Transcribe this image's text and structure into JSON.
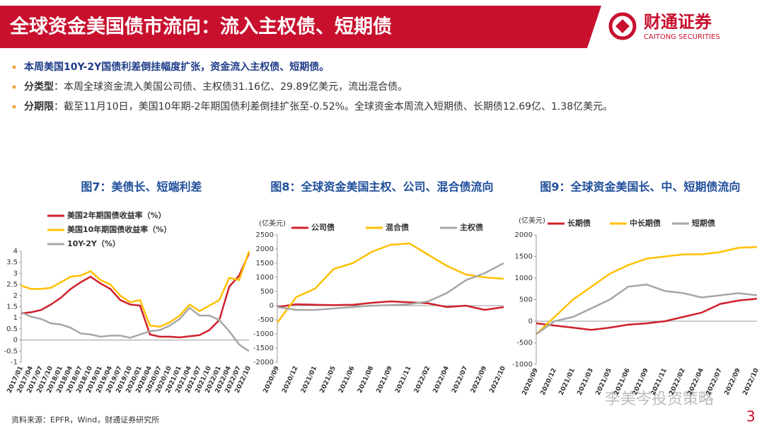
{
  "header": {
    "title": "全球资金美国债市流向：流入主权债、短期债",
    "logo": "财通证券",
    "logo_en": "CAITONG SECURITIES"
  },
  "bullets": [
    {
      "label": "本周美国10Y-2Y国债利差倒挂幅度扩张，资金流入主权债、短期债。"
    },
    {
      "label": "分类型",
      "text": "：本周全球资金流入美国公司债、主权债31.16亿、29.89亿美元，流出混合债。"
    },
    {
      "label": "分期限",
      "text": "：截至11月10日，美国10年期-2年期国债利差倒挂扩张至-0.52%。全球资金本周流入短期债、长期债12.69亿、1.38亿美元。"
    }
  ],
  "chart_data": [
    {
      "type": "line",
      "title": "图7：美债长、短端利差",
      "categories": [
        "2017/01",
        "2017/04",
        "2017/07",
        "2017/10",
        "2018/01",
        "2018/04",
        "2018/07",
        "2018/10",
        "2019/01",
        "2019/04",
        "2019/07",
        "2019/10",
        "2020/01",
        "2020/04",
        "2020/07",
        "2020/10",
        "2021/01",
        "2021/04",
        "2021/07",
        "2021/10",
        "2022/01",
        "2022/04",
        "2022/07",
        "2022/10"
      ],
      "series": [
        {
          "name": "美国2年期国债收益率（%）",
          "color": "#d0202a",
          "values": [
            1.2,
            1.25,
            1.35,
            1.6,
            1.9,
            2.3,
            2.6,
            2.85,
            2.55,
            2.3,
            1.8,
            1.6,
            1.55,
            0.25,
            0.15,
            0.15,
            0.12,
            0.17,
            0.22,
            0.45,
            0.9,
            2.4,
            2.9,
            3.9
          ]
        },
        {
          "name": "美国10年期国债收益率（%）",
          "color": "#ffc000",
          "values": [
            2.45,
            2.3,
            2.3,
            2.35,
            2.6,
            2.85,
            2.9,
            3.1,
            2.7,
            2.5,
            2.0,
            1.7,
            1.8,
            0.65,
            0.6,
            0.8,
            1.1,
            1.6,
            1.3,
            1.55,
            1.8,
            2.8,
            2.7,
            4.0
          ]
        },
        {
          "name": "10Y-2Y（%）",
          "color": "#a6a6a6",
          "values": [
            1.25,
            1.05,
            0.95,
            0.75,
            0.7,
            0.55,
            0.3,
            0.25,
            0.15,
            0.2,
            0.2,
            0.1,
            0.25,
            0.4,
            0.45,
            0.65,
            0.95,
            1.45,
            1.1,
            1.1,
            0.9,
            0.4,
            -0.2,
            -0.5
          ]
        }
      ],
      "ylim": [
        -1,
        4
      ],
      "yticks": [
        -1,
        -0.5,
        0,
        0.5,
        1,
        1.5,
        2,
        2.5,
        3,
        3.5,
        4
      ]
    },
    {
      "type": "line",
      "title": "图8：全球资金美国主权、公司、混合债流向",
      "unit": "(亿美元)",
      "categories": [
        "2020/09",
        "2020/12",
        "2021/01",
        "2021/05",
        "2021/06",
        "2021/08",
        "2021/09",
        "2021/11",
        "2022/02",
        "2022/04",
        "2022/07",
        "2022/09",
        "2022/10"
      ],
      "series": [
        {
          "name": "公司债",
          "color": "#d0202a",
          "values": [
            -50,
            50,
            30,
            20,
            30,
            100,
            150,
            120,
            80,
            -50,
            0,
            -150,
            -50
          ]
        },
        {
          "name": "混合债",
          "color": "#ffc000",
          "values": [
            -600,
            300,
            600,
            1300,
            1500,
            1900,
            2150,
            2200,
            1800,
            1400,
            1100,
            1000,
            950
          ]
        },
        {
          "name": "主权债",
          "color": "#a6a6a6",
          "values": [
            -50,
            -150,
            -150,
            -100,
            -50,
            0,
            20,
            50,
            150,
            450,
            900,
            1150,
            1500
          ]
        }
      ],
      "ylim": [
        -2000,
        2500
      ],
      "yticks": [
        -2000,
        -1500,
        -1000,
        -500,
        0,
        500,
        1000,
        1500,
        2000,
        2500
      ]
    },
    {
      "type": "line",
      "title": "图9：全球资金美国长、中、短期债流向",
      "unit": "(亿美元)",
      "categories": [
        "2020/09",
        "2020/12",
        "2021/01",
        "2021/03",
        "2021/05",
        "2021/06",
        "2021/09",
        "2021/11",
        "2022/02",
        "2022/04",
        "2022/07",
        "2022/09",
        "2022/10"
      ],
      "series": [
        {
          "name": "长期债",
          "color": "#d0202a",
          "values": [
            -50,
            -100,
            -150,
            -200,
            -150,
            -80,
            -50,
            0,
            100,
            200,
            400,
            480,
            520
          ]
        },
        {
          "name": "中长期债",
          "color": "#ffc000",
          "values": [
            -300,
            100,
            500,
            800,
            1100,
            1300,
            1450,
            1500,
            1550,
            1550,
            1600,
            1700,
            1720
          ]
        },
        {
          "name": "短期债",
          "color": "#a6a6a6",
          "values": [
            -300,
            0,
            100,
            300,
            500,
            800,
            850,
            700,
            650,
            550,
            600,
            650,
            600
          ]
        }
      ],
      "ylim": [
        -1000,
        2000
      ],
      "yticks": [
        -1000,
        -500,
        0,
        500,
        1000,
        1500,
        2000
      ]
    }
  ],
  "footer": {
    "source": "资料来源：EPFR，Wind，财通证券研究所",
    "watermark": "李美岑投资策略",
    "page": "3"
  }
}
